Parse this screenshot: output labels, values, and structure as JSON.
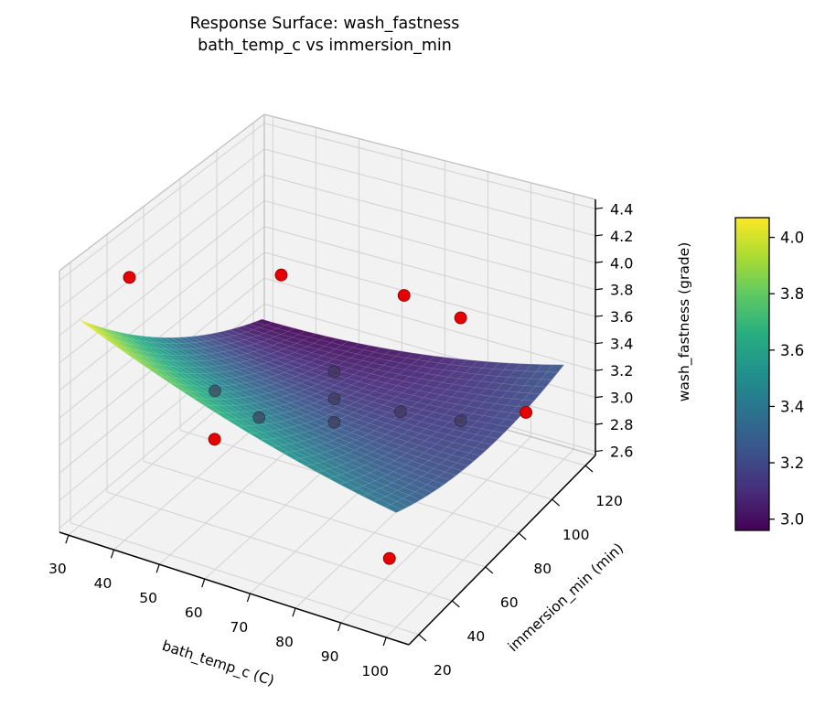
{
  "figure": {
    "title_line1": "Response Surface: wash_fastness",
    "title_line2": "bath_temp_c vs immersion_min",
    "background": "#ffffff"
  },
  "chart_data": {
    "type": "surface3d",
    "title": "Response Surface: wash_fastness\nbath_temp_c vs immersion_min",
    "xlabel": "bath_temp_c (C)",
    "ylabel": "immersion_min (min)",
    "zlabel": "wash_fastness (grade)",
    "xlim": [
      28,
      105
    ],
    "ylim": [
      14,
      126
    ],
    "zlim": [
      2.57,
      4.47
    ],
    "xticks": [
      30,
      40,
      50,
      60,
      70,
      80,
      90,
      100
    ],
    "xtick_labels": [
      "30",
      "40",
      "50",
      "60",
      "70",
      "80",
      "90",
      "100"
    ],
    "yticks": [
      20,
      40,
      60,
      80,
      100,
      120
    ],
    "ytick_labels": [
      "20",
      "40",
      "60",
      "80",
      "100",
      "120"
    ],
    "zticks": [
      2.6,
      2.8,
      3.0,
      3.2,
      3.4,
      3.6,
      3.8,
      4.0,
      4.2,
      4.4
    ],
    "ztick_labels": [
      "2.6",
      "2.8",
      "3.0",
      "3.2",
      "3.4",
      "3.6",
      "3.8",
      "4.0",
      "4.2",
      "4.4"
    ],
    "grid": true,
    "legend": "colorbar-right",
    "surface": {
      "x_range": [
        30,
        100
      ],
      "y_range": [
        20,
        120
      ],
      "grid_n": 28,
      "alpha": 0.93,
      "model": {
        "description": "fitted quadratic response surface z = c + a1*t + a2*m + a11*t^2 + a22*m^2 + a12*t*m with t=(bath_temp-65)/35, m=(immersion-70)/50",
        "c": 3.22,
        "a1": -0.1,
        "a2": -0.3,
        "a11": 0.08,
        "a22": 0.12,
        "a12": 0.25,
        "t_center": 65,
        "t_scale": 35,
        "m_center": 70,
        "m_scale": 50
      },
      "z_min": 2.96,
      "z_max": 4.07
    },
    "points": [
      {
        "bath_temp_c": 33,
        "immersion_min": 40,
        "wash_fastness": 4.2,
        "behind_surface": false
      },
      {
        "bath_temp_c": 55,
        "immersion_min": 70,
        "wash_fastness": 4.1,
        "behind_surface": false
      },
      {
        "bath_temp_c": 71,
        "immersion_min": 100,
        "wash_fastness": 3.76,
        "behind_surface": false
      },
      {
        "bath_temp_c": 84,
        "immersion_min": 100,
        "wash_fastness": 3.71,
        "behind_surface": false
      },
      {
        "bath_temp_c": 99,
        "immersion_min": 100,
        "wash_fastness": 3.15,
        "behind_surface": false
      },
      {
        "bath_temp_c": 52,
        "immersion_min": 40,
        "wash_fastness": 3.2,
        "behind_surface": false
      },
      {
        "bath_temp_c": 91,
        "immersion_min": 40,
        "wash_fastness": 2.73,
        "behind_surface": false
      },
      {
        "bath_temp_c": 40,
        "immersion_min": 70,
        "wash_fastness": 3.1,
        "behind_surface": true
      },
      {
        "bath_temp_c": 50,
        "immersion_min": 70,
        "wash_fastness": 3.0,
        "behind_surface": true
      },
      {
        "bath_temp_c": 67,
        "immersion_min": 70,
        "wash_fastness": 3.5,
        "behind_surface": true
      },
      {
        "bath_temp_c": 67,
        "immersion_min": 70,
        "wash_fastness": 3.3,
        "behind_surface": true
      },
      {
        "bath_temp_c": 67,
        "immersion_min": 70,
        "wash_fastness": 3.13,
        "behind_surface": true
      },
      {
        "bath_temp_c": 82,
        "immersion_min": 70,
        "wash_fastness": 3.35,
        "behind_surface": true
      },
      {
        "bath_temp_c": 84,
        "immersion_min": 100,
        "wash_fastness": 2.95,
        "behind_surface": true
      }
    ],
    "colorbar": {
      "domain": [
        2.96,
        4.07
      ],
      "ticks": [
        3.0,
        3.2,
        3.4,
        3.6,
        3.8,
        4.0
      ],
      "tick_labels": [
        "3.0",
        "3.2",
        "3.4",
        "3.6",
        "3.8",
        "4.0"
      ],
      "cmap": "viridis"
    },
    "colors": {
      "point_front": "#e60000",
      "point_front_edge": "#8f0000",
      "point_behind": "#3a3550",
      "pane": "#f2f2f2",
      "grid_line": "#d4d4d4",
      "pane_edge": "#bdbdbd",
      "axis_line": "#000000"
    }
  }
}
